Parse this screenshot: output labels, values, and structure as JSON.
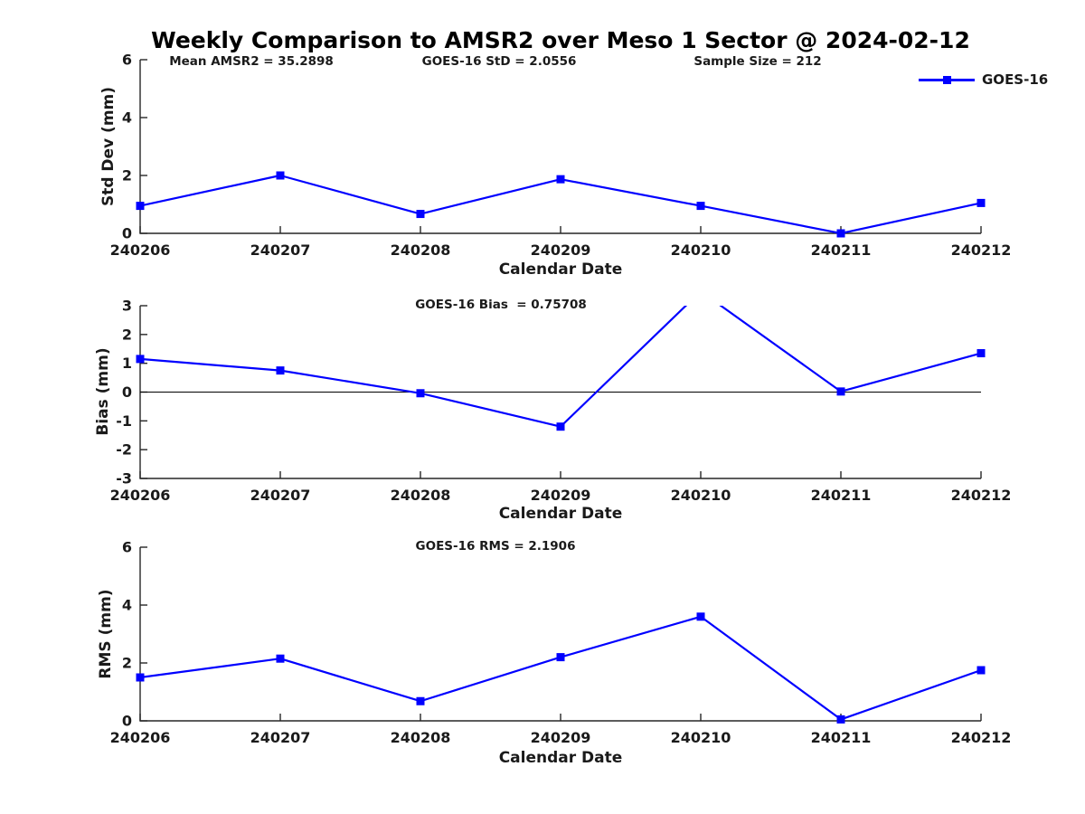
{
  "title": "Weekly Comparison to AMSR2 over Meso 1 Sector @ 2024-02-12",
  "colors": {
    "series_blue": "#0000FF",
    "axis": "#262626",
    "text": "#1a1a1a",
    "background": "#ffffff"
  },
  "legend": {
    "label": "GOES-16",
    "position": "top-right"
  },
  "chart_data": [
    {
      "type": "line",
      "title": "",
      "annotations": [
        "Mean AMSR2 = 35.2898",
        "GOES-16 StD = 2.0556",
        "Sample Size = 212"
      ],
      "xlabel": "Calendar Date",
      "ylabel": "Std Dev (mm)",
      "categories": [
        "240206",
        "240207",
        "240208",
        "240209",
        "240210",
        "240211",
        "240212"
      ],
      "series": [
        {
          "name": "GOES-16",
          "values": [
            0.95,
            2.0,
            0.67,
            1.87,
            0.95,
            0.0,
            1.05
          ]
        }
      ],
      "ylim": [
        0,
        6
      ],
      "yticks": [
        0,
        2,
        4,
        6
      ],
      "line_color": "#0000FF",
      "marker": "filled-square",
      "grid": false,
      "legend_entries": [
        "GOES-16"
      ]
    },
    {
      "type": "line",
      "title": "GOES-16 Bias  = 0.75708",
      "xlabel": "Calendar Date",
      "ylabel": "Bias (mm)",
      "categories": [
        "240206",
        "240207",
        "240208",
        "240209",
        "240210",
        "240211",
        "240212"
      ],
      "series": [
        {
          "name": "GOES-16",
          "values": [
            1.15,
            0.75,
            -0.04,
            -1.2,
            3.5,
            0.02,
            1.35
          ]
        }
      ],
      "ylim": [
        -3,
        3
      ],
      "yticks": [
        3,
        2,
        1,
        0,
        -1,
        -2,
        -3
      ],
      "zero_line": true,
      "clip_to_axes": true,
      "line_color": "#0000FF",
      "marker": "filled-square",
      "grid": false
    },
    {
      "type": "line",
      "title": "GOES-16 RMS = 2.1906",
      "xlabel": "Calendar Date",
      "ylabel": "RMS (mm)",
      "categories": [
        "240206",
        "240207",
        "240208",
        "240209",
        "240210",
        "240211",
        "240212"
      ],
      "series": [
        {
          "name": "GOES-16",
          "values": [
            1.5,
            2.15,
            0.68,
            2.2,
            3.6,
            0.05,
            1.75
          ]
        }
      ],
      "ylim": [
        0,
        6
      ],
      "yticks": [
        0,
        2,
        4,
        6
      ],
      "line_color": "#0000FF",
      "marker": "filled-square",
      "grid": false
    }
  ]
}
